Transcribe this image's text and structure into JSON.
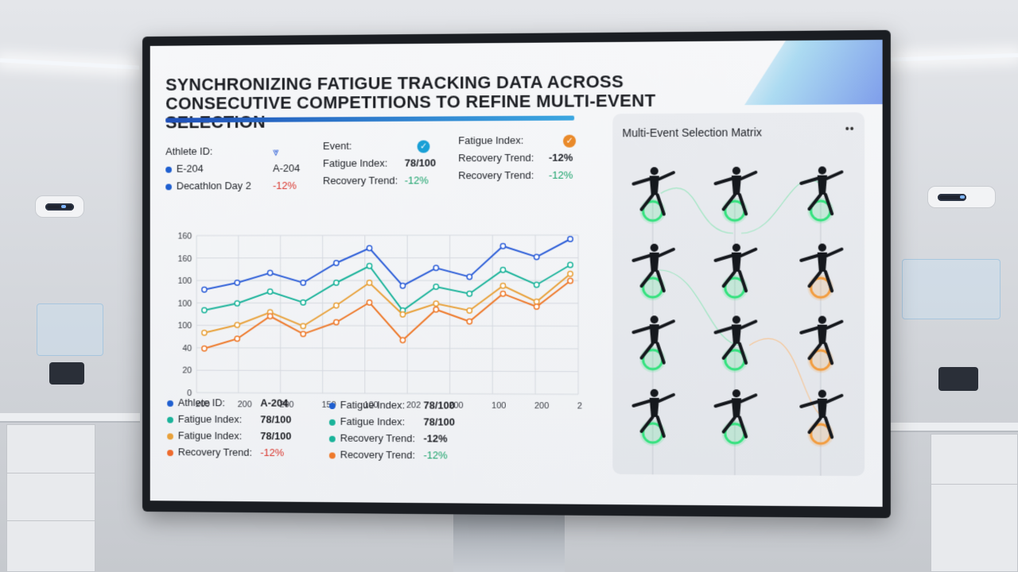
{
  "header": {
    "title": "SYNCHRONIZING FATIGUE TRACKING DATA ACROSS CONSECUTIVE COMPETITIONS TO REFINE MULTI-EVENT SELECTION"
  },
  "info": {
    "col1": {
      "label": "Athlete ID:",
      "items": [
        {
          "text": "E-204",
          "color": "#1f5fd0"
        },
        {
          "text": "Decathlon Day 2",
          "color": "#1f5fd0"
        }
      ]
    },
    "col2": {
      "icon": "chevron-down-icon",
      "values": [
        {
          "text": "A-204",
          "tone": "dark"
        },
        {
          "text": "-12%",
          "tone": "red"
        }
      ]
    },
    "col3": {
      "labels": [
        "Event:",
        "Fatigue Index:",
        "Recovery Trend:"
      ],
      "check_color": "#1aa0d6",
      "values": [
        {
          "text": "78/100",
          "tone": "dark"
        },
        {
          "text": "-12%",
          "tone": "green"
        }
      ]
    },
    "col4": {
      "labels": [
        "Fatigue Index:",
        "Recovery Trend:",
        "Recovery Trend:"
      ],
      "check_color": "#e98a2a",
      "values": [
        {
          "text": "-12%",
          "tone": "dark"
        },
        {
          "text": "-12%",
          "tone": "green"
        }
      ]
    }
  },
  "chart_data": {
    "type": "line",
    "yticks": [
      "160",
      "160",
      "100",
      "100",
      "100",
      "40",
      "20",
      "0"
    ],
    "xticks": [
      "200",
      "200",
      "200",
      "150",
      "100",
      "202",
      "200",
      "100",
      "200",
      "200"
    ],
    "ylim": [
      0,
      160
    ],
    "grid": true,
    "series": [
      {
        "color": "#2e5fd8",
        "values": [
          105,
          112,
          122,
          112,
          132,
          147,
          109,
          127,
          118,
          149,
          138,
          156
        ]
      },
      {
        "color": "#1ab39a",
        "values": [
          84,
          91,
          103,
          92,
          112,
          129,
          84,
          108,
          101,
          125,
          110,
          130
        ]
      },
      {
        "color": "#e8a13a",
        "values": [
          61,
          69,
          82,
          68,
          89,
          112,
          80,
          91,
          84,
          109,
          93,
          121
        ]
      },
      {
        "color": "#ee7a2c",
        "values": [
          45,
          55,
          78,
          60,
          72,
          92,
          54,
          85,
          73,
          101,
          88,
          114
        ]
      }
    ]
  },
  "legend": {
    "left": [
      {
        "label": "Athlete ID:",
        "value": "A-204",
        "color": "#1f5fd0",
        "tone": "dark"
      },
      {
        "label": "Fatigue Index:",
        "value": "78/100",
        "color": "#1ab39a",
        "tone": "dark"
      },
      {
        "label": "Fatigue Index:",
        "value": "78/100",
        "color": "#e8a13a",
        "tone": "dark"
      },
      {
        "label": "Recovery Trend:",
        "value": "-12%",
        "color": "#ee6a2c",
        "tone": "red"
      }
    ],
    "right": [
      {
        "label": "Fatigue Index:",
        "value": "78/100",
        "color": "#1f5fd0",
        "tone": "dark"
      },
      {
        "label": "Fatigue Index:",
        "value": "78/100",
        "color": "#1ab39a",
        "tone": "dark"
      },
      {
        "label": "Recovery Trend:",
        "value": "-12%",
        "color": "#1ab39a",
        "tone": "dark"
      },
      {
        "label": "Recovery Trend:",
        "value": "-12%",
        "color": "#ee7a2c",
        "tone": "green"
      }
    ]
  },
  "matrix": {
    "title": "Multi-Event Selection Matrix",
    "menu_icon": "more-icon",
    "rows": [
      [
        "green",
        "green",
        "green"
      ],
      [
        "green",
        "green",
        "orange"
      ],
      [
        "green",
        "green",
        "orange"
      ],
      [
        "green",
        "green",
        "orange"
      ]
    ],
    "colors": {
      "green": "#2ee27a",
      "orange": "#f29a3a"
    }
  }
}
